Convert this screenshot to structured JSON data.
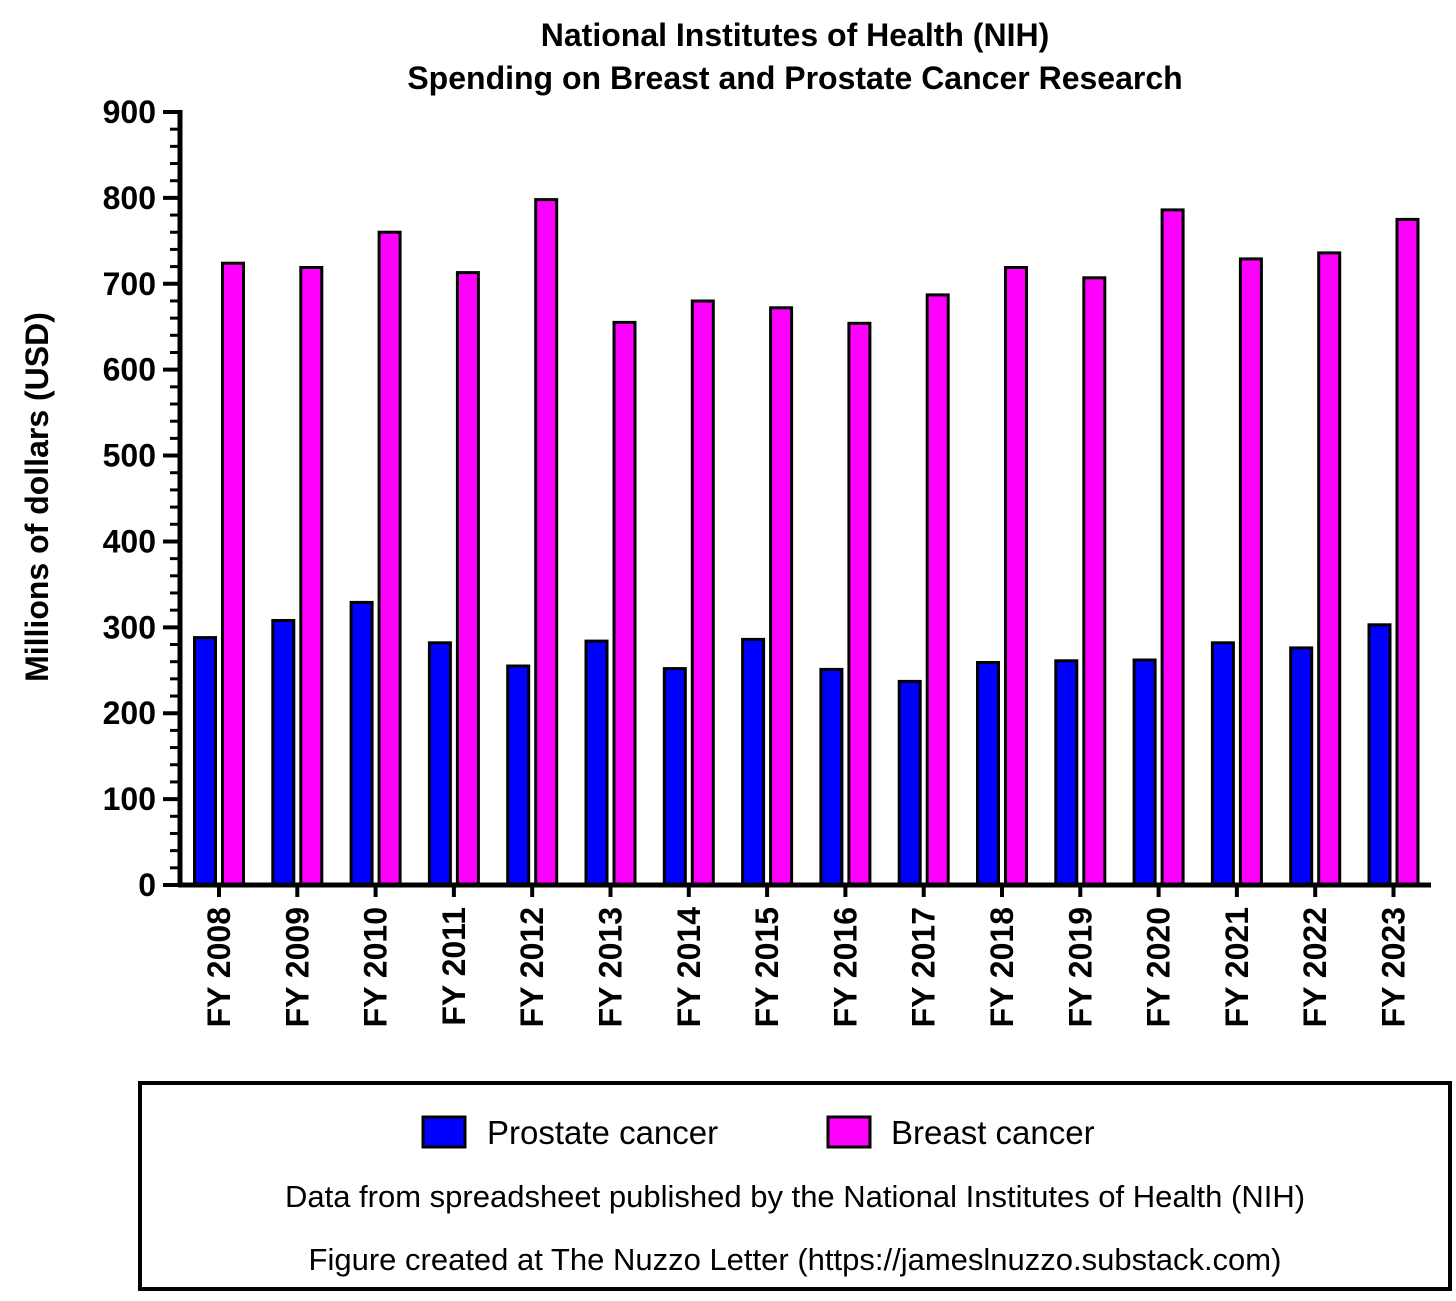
{
  "chart_data": {
    "type": "bar",
    "title": [
      "National Institutes of Health (NIH)",
      "Spending on Breast and Prostate Cancer Research"
    ],
    "ylabel": "Millions of dollars (USD)",
    "xlabel": "",
    "ylim": [
      0,
      900
    ],
    "yticks": [
      "0",
      "100",
      "200",
      "300",
      "400",
      "500",
      "600",
      "700",
      "800",
      "900"
    ],
    "categories": [
      "FY 2008",
      "FY 2009",
      "FY 2010",
      "FY 2011",
      "FY 2012",
      "FY 2013",
      "FY 2014",
      "FY 2015",
      "FY 2016",
      "FY 2017",
      "FY 2018",
      "FY 2019",
      "FY 2020",
      "FY 2021",
      "FY 2022",
      "FY 2023"
    ],
    "series": [
      {
        "name": "Prostate cancer",
        "color": "#0000ff",
        "values": [
          288,
          308,
          329,
          282,
          255,
          284,
          252,
          286,
          251,
          237,
          259,
          261,
          262,
          282,
          276,
          303
        ]
      },
      {
        "name": "Breast cancer",
        "color": "#ff00ff",
        "values": [
          724,
          719,
          760,
          713,
          798,
          655,
          680,
          672,
          654,
          687,
          719,
          707,
          786,
          729,
          736,
          775
        ]
      }
    ],
    "grid": false,
    "legend_position": "bottom",
    "notes": [
      "Data from spreadsheet published by the National Institutes of Health (NIH)",
      "Figure created at The Nuzzo Letter (https://jameslnuzzo.substack.com)"
    ]
  }
}
